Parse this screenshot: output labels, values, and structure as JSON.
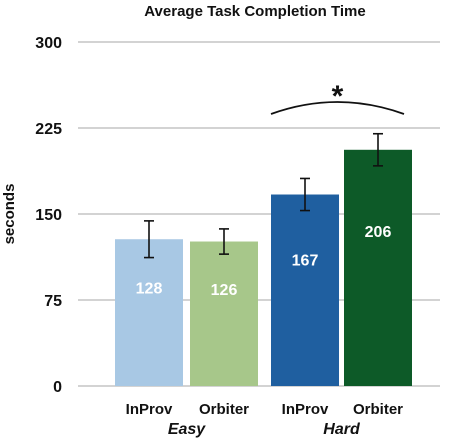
{
  "chart_data": {
    "type": "bar",
    "title": "Average Task Completion Time",
    "ylabel": "seconds",
    "ylim": [
      0,
      300
    ],
    "yticks": [
      0,
      75,
      150,
      225,
      300
    ],
    "grid": true,
    "categories": [
      "InProv",
      "Orbiter",
      "InProv",
      "Orbiter"
    ],
    "groups": [
      {
        "label": "Easy",
        "members": [
          0,
          1
        ]
      },
      {
        "label": "Hard",
        "members": [
          2,
          3
        ]
      }
    ],
    "values": [
      128,
      126,
      167,
      206
    ],
    "value_labels": [
      "128",
      "126",
      "167",
      "206"
    ],
    "error_low": [
      112,
      115,
      153,
      192
    ],
    "error_high": [
      144,
      137,
      181,
      220
    ],
    "colors": [
      "#a8c8e4",
      "#a7c78a",
      "#1f5fa0",
      "#0d5a28"
    ],
    "annotation": {
      "text": "*",
      "between": [
        2,
        3
      ]
    }
  }
}
